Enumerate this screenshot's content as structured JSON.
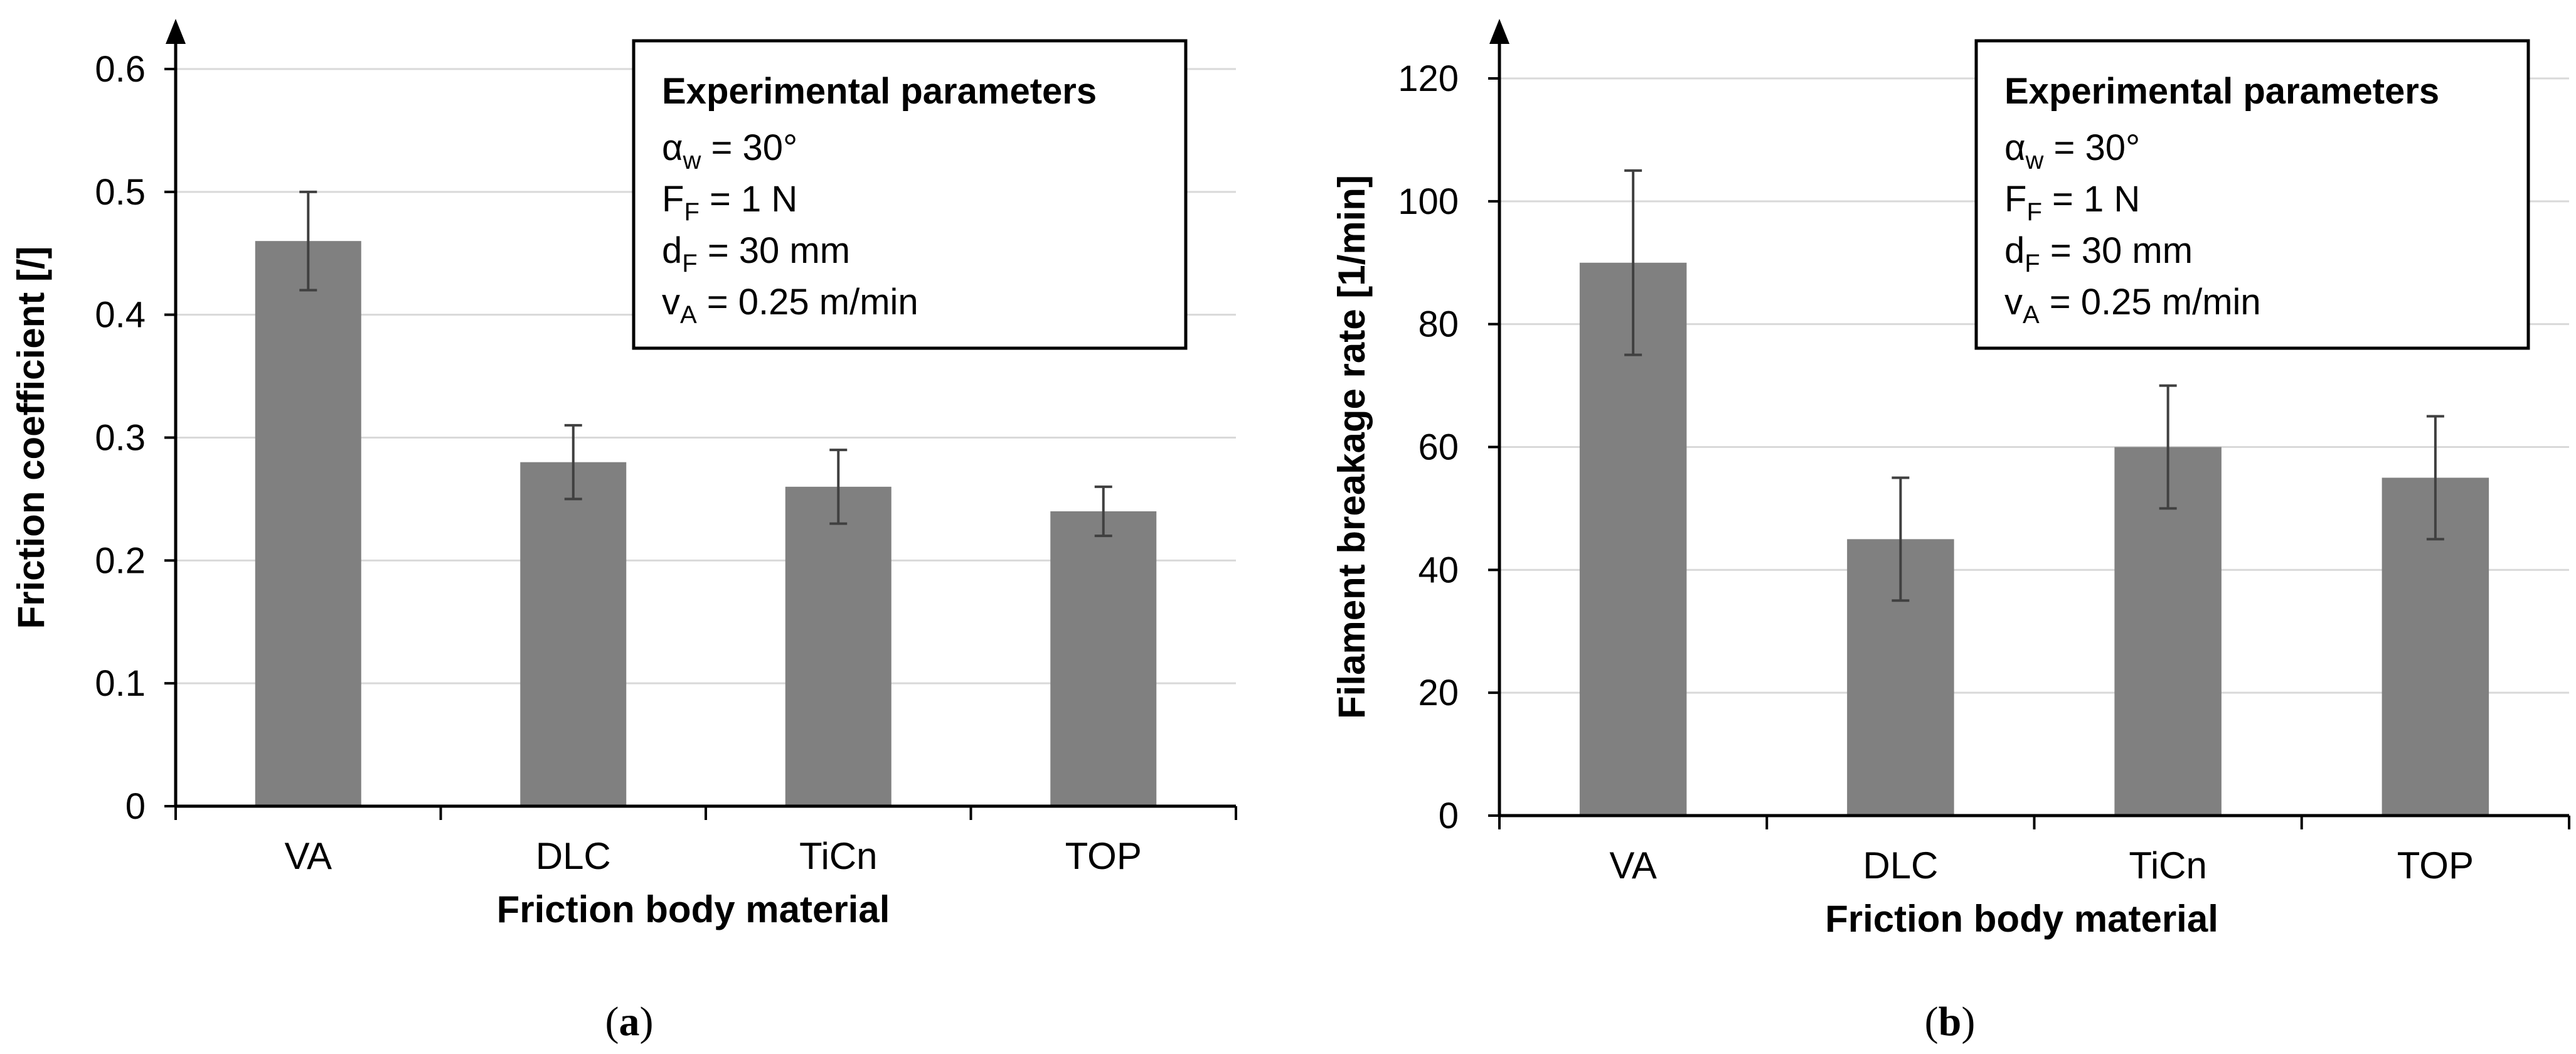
{
  "chart_data": [
    {
      "type": "bar",
      "categories": [
        "VA",
        "DLC",
        "TiCn",
        "TOP"
      ],
      "values": [
        0.46,
        0.28,
        0.26,
        0.24
      ],
      "errors": [
        0.04,
        0.03,
        0.03,
        0.02
      ],
      "ylim": [
        0,
        0.6
      ],
      "yticks": [
        "0",
        "0.1",
        "0.2",
        "0.3",
        "0.4",
        "0.5",
        "0.6"
      ],
      "ytick_values": [
        0,
        0.1,
        0.2,
        0.3,
        0.4,
        0.5,
        0.6
      ],
      "xlabel": "Friction body material",
      "ylabel": "Friction coefficient [/]",
      "grid": true,
      "legend_box": {
        "title": "Experimental parameters",
        "lines": [
          {
            "sym": "α",
            "sub": "w",
            "rest": " = 30°"
          },
          {
            "sym": "F",
            "sub": "F",
            "rest": " = 1 N"
          },
          {
            "sym": "d",
            "sub": "F",
            "rest": " = 30 mm"
          },
          {
            "sym": "v",
            "sub": "A",
            "rest": " = 0.25 m/min"
          }
        ]
      },
      "bar_color": "#808080",
      "caption": "(a)"
    },
    {
      "type": "bar",
      "categories": [
        "VA",
        "DLC",
        "TiCn",
        "TOP"
      ],
      "values": [
        90,
        45,
        60,
        55
      ],
      "errors": [
        15,
        10,
        10,
        10
      ],
      "ylim": [
        0,
        120
      ],
      "yticks": [
        "0",
        "20",
        "40",
        "60",
        "80",
        "100",
        "120"
      ],
      "ytick_values": [
        0,
        20,
        40,
        60,
        80,
        100,
        120
      ],
      "xlabel": "Friction body material",
      "ylabel": "Filament breakage rate [1/min]",
      "grid": true,
      "legend_box": {
        "title": "Experimental parameters",
        "lines": [
          {
            "sym": "α",
            "sub": "w",
            "rest": " = 30°"
          },
          {
            "sym": "F",
            "sub": "F",
            "rest": " = 1 N"
          },
          {
            "sym": "d",
            "sub": "F",
            "rest": " = 30 mm"
          },
          {
            "sym": "v",
            "sub": "A",
            "rest": " = 0.25 m/min"
          }
        ]
      },
      "bar_color": "#808080",
      "caption": "(b)"
    }
  ]
}
